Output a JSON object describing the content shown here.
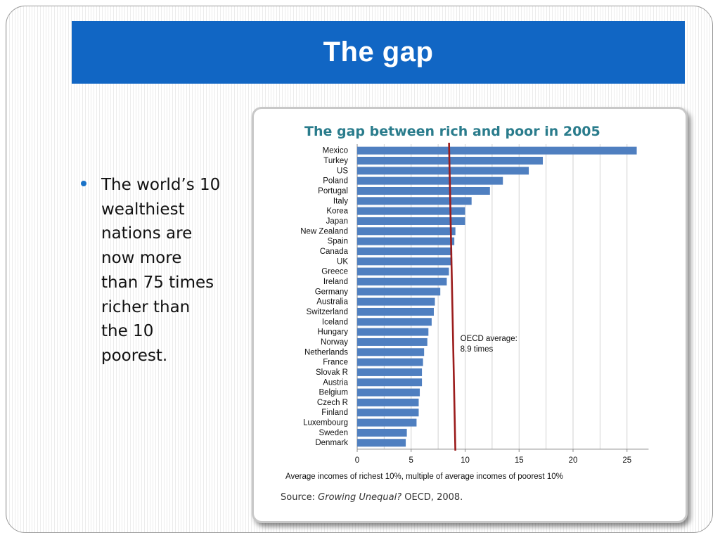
{
  "slide": {
    "title": "The gap",
    "bullet": "The world’s 10 wealthiest nations are now more than 75 times richer than the 10 poorest."
  },
  "chart_data": {
    "type": "bar",
    "orientation": "horizontal",
    "title": "The gap between rich and poor in 2005",
    "xlabel": "Average incomes of richest 10%, multiple of average incomes of poorest 10%",
    "ylabel": "",
    "xlim": [
      0,
      27
    ],
    "xticks": [
      0,
      5,
      10,
      15,
      20,
      25
    ],
    "grid": true,
    "categories": [
      "Mexico",
      "Turkey",
      "US",
      "Poland",
      "Portugal",
      "Italy",
      "Korea",
      "Japan",
      "New Zealand",
      "Spain",
      "Canada",
      "UK",
      "Greece",
      "Ireland",
      "Germany",
      "Australia",
      "Switzerland",
      "Iceland",
      "Hungary",
      "Norway",
      "Netherlands",
      "France",
      "Slovak R",
      "Austria",
      "Belgium",
      "Czech R",
      "Finland",
      "Luxembourg",
      "Sweden",
      "Denmark"
    ],
    "values": [
      25.9,
      17.2,
      15.9,
      13.5,
      12.3,
      10.6,
      10.0,
      10.0,
      9.1,
      9.0,
      8.8,
      8.8,
      8.5,
      8.3,
      7.7,
      7.2,
      7.1,
      6.9,
      6.6,
      6.5,
      6.2,
      6.1,
      6.0,
      6.0,
      5.8,
      5.7,
      5.7,
      5.5,
      4.6,
      4.5
    ],
    "reference_line": {
      "value": 8.9,
      "label_line1": "OECD average:",
      "label_line2": "8.9 times",
      "color": "#9b1c1c"
    },
    "bar_color": "#4f7fc0",
    "source_prefix": "Source: ",
    "source_title": "Growing Unequal?",
    "source_suffix": "  OECD, 2008."
  }
}
